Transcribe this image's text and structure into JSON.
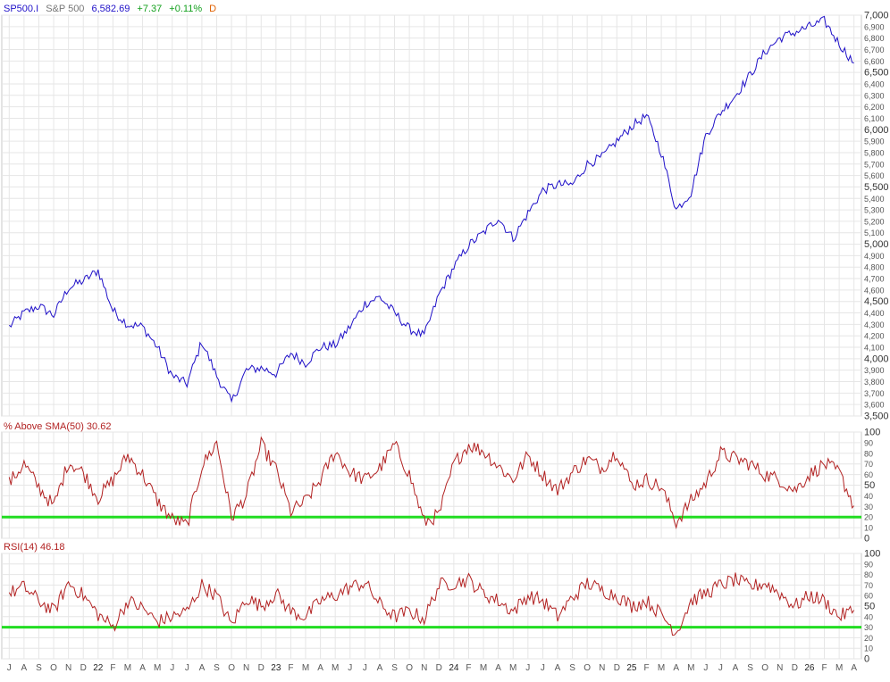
{
  "header": {
    "symbol": "SP500.I",
    "name": "S&P 500",
    "last": "6,582.69",
    "change": "+7.37",
    "change_pct": "+0.11%",
    "period": "D"
  },
  "colors": {
    "price_line": "#1f10c8",
    "indicator_line": "#b22222",
    "threshold_line": "#22dd22",
    "grid": "#e6e6e6",
    "symbol_text": "#1f10c8",
    "positive_text": "#14a01e",
    "period_text": "#e06000",
    "panel_label_text": "#b22222"
  },
  "chart_data": [
    {
      "type": "line",
      "name": "price",
      "ylim": [
        3500,
        7000
      ],
      "yticks": [
        3500,
        3600,
        3700,
        3800,
        3900,
        4000,
        4100,
        4200,
        4300,
        4400,
        4500,
        4600,
        4700,
        4800,
        4900,
        5000,
        5100,
        5200,
        5300,
        5400,
        5500,
        5600,
        5700,
        5800,
        5900,
        6000,
        6100,
        6200,
        6300,
        6400,
        6500,
        6600,
        6700,
        6800,
        6900,
        7000
      ],
      "ytick_labels": [
        "3,500",
        "3,600",
        "3,700",
        "3,800",
        "3,900",
        "4,000",
        "4,100",
        "4,200",
        "4,300",
        "4,400",
        "4,500",
        "4,600",
        "4,700",
        "4,800",
        "4,900",
        "5,000",
        "5,100",
        "5,200",
        "5,300",
        "5,400",
        "5,500",
        "5,600",
        "5,700",
        "5,800",
        "5,900",
        "6,000",
        "6,100",
        "6,200",
        "6,300",
        "6,400",
        "6,500",
        "6,600",
        "6,700",
        "6,800",
        "6,900",
        "7,000"
      ],
      "major_yticks": [
        3500,
        4000,
        4500,
        5000,
        5500,
        6000,
        6500,
        7000
      ],
      "x": [
        "2021-07",
        "2021-08",
        "2021-09",
        "2021-10",
        "2021-11",
        "2021-12",
        "2022-01",
        "2022-02",
        "2022-03",
        "2022-04",
        "2022-05",
        "2022-06",
        "2022-07",
        "2022-08",
        "2022-09",
        "2022-10",
        "2022-11",
        "2022-12",
        "2023-01",
        "2023-02",
        "2023-03",
        "2023-04",
        "2023-05",
        "2023-06",
        "2023-07",
        "2023-08",
        "2023-09",
        "2023-10",
        "2023-11",
        "2023-12",
        "2024-01",
        "2024-02",
        "2024-03",
        "2024-04",
        "2024-05",
        "2024-06",
        "2024-07",
        "2024-08",
        "2024-09",
        "2024-10",
        "2024-11",
        "2024-12",
        "2025-01",
        "2025-02",
        "2025-03",
        "2025-04",
        "2025-05",
        "2025-06",
        "2025-07",
        "2025-08",
        "2025-09",
        "2025-10",
        "2025-11",
        "2025-12",
        "2026-01",
        "2026-02",
        "2026-03",
        "2026-04"
      ],
      "values": [
        4280,
        4400,
        4460,
        4380,
        4620,
        4680,
        4770,
        4420,
        4300,
        4280,
        4100,
        3850,
        3780,
        4150,
        3850,
        3620,
        3900,
        3920,
        3870,
        4050,
        3960,
        4100,
        4120,
        4280,
        4480,
        4540,
        4400,
        4260,
        4200,
        4560,
        4800,
        4990,
        5100,
        5230,
        5050,
        5270,
        5470,
        5520,
        5520,
        5700,
        5760,
        5900,
        6030,
        6120,
        5800,
        5300,
        5450,
        5950,
        6150,
        6300,
        6480,
        6680,
        6800,
        6850,
        6900,
        6950,
        6750,
        6583
      ],
      "last_value": 6582.69
    },
    {
      "type": "line",
      "name": "% Above SMA(50)",
      "label": "% Above SMA(50) 30.62",
      "ylim": [
        0,
        100
      ],
      "yticks": [
        0,
        10,
        20,
        30,
        40,
        50,
        60,
        70,
        80,
        90,
        100
      ],
      "major_yticks": [
        0,
        50,
        100
      ],
      "threshold": 20,
      "x": [
        "2021-07",
        "2021-08",
        "2021-09",
        "2021-10",
        "2021-11",
        "2021-12",
        "2022-01",
        "2022-02",
        "2022-03",
        "2022-04",
        "2022-05",
        "2022-06",
        "2022-07",
        "2022-08",
        "2022-09",
        "2022-10",
        "2022-11",
        "2022-12",
        "2023-01",
        "2023-02",
        "2023-03",
        "2023-04",
        "2023-05",
        "2023-06",
        "2023-07",
        "2023-08",
        "2023-09",
        "2023-10",
        "2023-11",
        "2023-12",
        "2024-01",
        "2024-02",
        "2024-03",
        "2024-04",
        "2024-05",
        "2024-06",
        "2024-07",
        "2024-08",
        "2024-09",
        "2024-10",
        "2024-11",
        "2024-12",
        "2025-01",
        "2025-02",
        "2025-03",
        "2025-04",
        "2025-05",
        "2025-06",
        "2025-07",
        "2025-08",
        "2025-09",
        "2025-10",
        "2025-11",
        "2025-12",
        "2026-01",
        "2026-02",
        "2026-03",
        "2026-04"
      ],
      "values": [
        52,
        70,
        48,
        30,
        72,
        62,
        38,
        55,
        78,
        60,
        35,
        18,
        12,
        68,
        90,
        20,
        40,
        88,
        65,
        25,
        35,
        55,
        82,
        62,
        55,
        66,
        88,
        60,
        15,
        22,
        70,
        88,
        82,
        68,
        55,
        78,
        60,
        45,
        62,
        75,
        66,
        82,
        50,
        55,
        48,
        15,
        35,
        52,
        80,
        75,
        70,
        60,
        55,
        45,
        60,
        70,
        62,
        30.62
      ],
      "last_value": 30.62
    },
    {
      "type": "line",
      "name": "RSI(14)",
      "label": "RSI(14) 46.18",
      "ylim": [
        0,
        100
      ],
      "yticks": [
        0,
        10,
        20,
        30,
        40,
        50,
        60,
        70,
        80,
        90,
        100
      ],
      "major_yticks": [
        0,
        50,
        100
      ],
      "threshold": 30,
      "x": [
        "2021-07",
        "2021-08",
        "2021-09",
        "2021-10",
        "2021-11",
        "2021-12",
        "2022-01",
        "2022-02",
        "2022-03",
        "2022-04",
        "2022-05",
        "2022-06",
        "2022-07",
        "2022-08",
        "2022-09",
        "2022-10",
        "2022-11",
        "2022-12",
        "2023-01",
        "2023-02",
        "2023-03",
        "2023-04",
        "2023-05",
        "2023-06",
        "2023-07",
        "2023-08",
        "2023-09",
        "2023-10",
        "2023-11",
        "2023-12",
        "2024-01",
        "2024-02",
        "2024-03",
        "2024-04",
        "2024-05",
        "2024-06",
        "2024-07",
        "2024-08",
        "2024-09",
        "2024-10",
        "2024-11",
        "2024-12",
        "2025-01",
        "2025-02",
        "2025-03",
        "2025-04",
        "2025-05",
        "2025-06",
        "2025-07",
        "2025-08",
        "2025-09",
        "2025-10",
        "2025-11",
        "2025-12",
        "2026-01",
        "2026-02",
        "2026-03",
        "2026-04"
      ],
      "values": [
        62,
        68,
        55,
        45,
        72,
        60,
        42,
        30,
        55,
        48,
        35,
        40,
        45,
        70,
        60,
        32,
        58,
        50,
        62,
        45,
        40,
        55,
        60,
        68,
        72,
        52,
        40,
        45,
        38,
        70,
        72,
        75,
        62,
        55,
        45,
        60,
        55,
        40,
        58,
        72,
        65,
        60,
        50,
        55,
        42,
        25,
        55,
        62,
        70,
        75,
        68,
        72,
        62,
        50,
        60,
        55,
        40,
        46.18
      ],
      "last_value": 46.18
    }
  ],
  "x_axis": {
    "labels": [
      "J",
      "A",
      "S",
      "O",
      "N",
      "D",
      "22",
      "F",
      "M",
      "A",
      "M",
      "J",
      "J",
      "A",
      "S",
      "O",
      "N",
      "D",
      "23",
      "F",
      "M",
      "A",
      "M",
      "J",
      "J",
      "A",
      "S",
      "O",
      "N",
      "D",
      "24",
      "F",
      "M",
      "A",
      "M",
      "J",
      "J",
      "A",
      "S",
      "O",
      "N",
      "D",
      "25",
      "F",
      "M",
      "A",
      "M",
      "J",
      "J",
      "A",
      "S",
      "O",
      "N",
      "D",
      "26",
      "F",
      "M",
      "A"
    ]
  }
}
